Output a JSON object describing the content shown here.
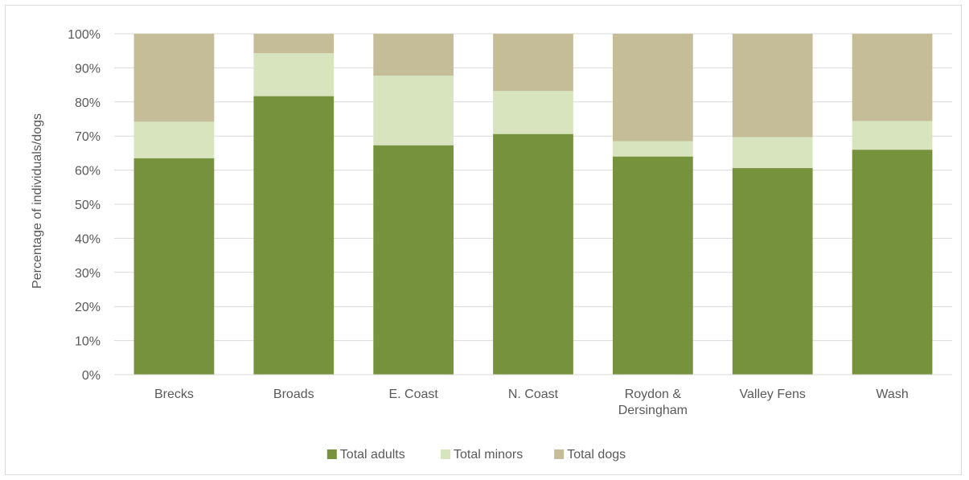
{
  "chart_data": {
    "type": "bar",
    "stacked": true,
    "percent_stacked": true,
    "categories": [
      "Brecks",
      "Broads",
      "E. Coast",
      "N. Coast",
      "Roydon & Dersingham",
      "Valley Fens",
      "Wash"
    ],
    "category_lines": [
      [
        "Brecks"
      ],
      [
        "Broads"
      ],
      [
        "E. Coast"
      ],
      [
        "N. Coast"
      ],
      [
        "Roydon &",
        "Dersingham"
      ],
      [
        "Valley Fens"
      ],
      [
        "Wash"
      ]
    ],
    "series": [
      {
        "name": "Total adults",
        "color": "#76923c",
        "values": [
          63.5,
          81.7,
          67.3,
          70.6,
          64.0,
          60.6,
          66.0
        ]
      },
      {
        "name": "Total minors",
        "color": "#d7e4bd",
        "values": [
          10.7,
          12.6,
          20.4,
          12.6,
          4.5,
          9.1,
          8.4
        ]
      },
      {
        "name": "Total dogs",
        "color": "#c4bd97",
        "values": [
          25.8,
          5.7,
          12.3,
          16.8,
          31.5,
          30.3,
          25.6
        ]
      }
    ],
    "ylabel": "Percentage of individuals/dogs",
    "xlabel": "",
    "ylim": [
      0,
      100
    ],
    "yticks": [
      "0%",
      "10%",
      "20%",
      "30%",
      "40%",
      "50%",
      "60%",
      "70%",
      "80%",
      "90%",
      "100%"
    ],
    "grid": true,
    "legend_position": "bottom"
  }
}
